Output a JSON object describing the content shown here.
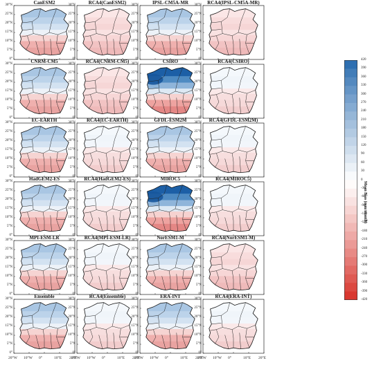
{
  "panels": [
    {
      "title": "CanESM2",
      "pattern": "strong"
    },
    {
      "title": "RCA4(CanESM2)",
      "pattern": "red"
    },
    {
      "title": "IPSL-CM5A-MR",
      "pattern": "strong"
    },
    {
      "title": "RCA4(IPSL-CM5A-MR)",
      "pattern": "red"
    },
    {
      "title": "CNRM-CM5",
      "pattern": "strong"
    },
    {
      "title": "RCA4(CNRM-CM5)",
      "pattern": "red"
    },
    {
      "title": "CSIRO",
      "pattern": "verystrong"
    },
    {
      "title": "RCA4(CSIRO)",
      "pattern": "light"
    },
    {
      "title": "EC-EARTH",
      "pattern": "strong"
    },
    {
      "title": "RCA4(EC-EARTH)",
      "pattern": "light"
    },
    {
      "title": "GFDL-ESM2M",
      "pattern": "strong"
    },
    {
      "title": "RCA4(GFDL-ESM2M)",
      "pattern": "light"
    },
    {
      "title": "HadGEM2-ES",
      "pattern": "strong"
    },
    {
      "title": "RCA4(HadGEM2-ES)",
      "pattern": "light"
    },
    {
      "title": "MIROC5",
      "pattern": "verystrong"
    },
    {
      "title": "RCA4(MIROC5)",
      "pattern": "light"
    },
    {
      "title": "MPI-ESM-LR",
      "pattern": "strong"
    },
    {
      "title": "RCA4(MPI-ESM-LR)",
      "pattern": "light"
    },
    {
      "title": "NorESM1-M",
      "pattern": "strong"
    },
    {
      "title": "RCA4(NorESM1-M)",
      "pattern": "red"
    },
    {
      "title": "Ensemble",
      "pattern": "strong"
    },
    {
      "title": "RCA4(Ensemble)",
      "pattern": "light"
    },
    {
      "title": "ERA-INT",
      "pattern": "strong"
    },
    {
      "title": "RCA4(ERA-INT)",
      "pattern": "light"
    }
  ],
  "lat_labels": [
    "30°N",
    "25°N",
    "20°N",
    "15°N",
    "10°N",
    "5°N",
    "0°"
  ],
  "lon_labels": [
    "20°W",
    "10°W",
    "0°",
    "10°E",
    "20°E"
  ],
  "colorbar": {
    "label": "Mean Bias (mm/month)",
    "ticks": [
      "420",
      "390",
      "360",
      "330",
      "300",
      "270",
      "240",
      "210",
      "180",
      "150",
      "120",
      "90",
      "60",
      "30",
      "0",
      "-30",
      "-60",
      "-90",
      "-120",
      "-150",
      "-180",
      "-210",
      "-240",
      "-270",
      "-300",
      "-330",
      "-360",
      "-390",
      "-420"
    ],
    "color_max": "#2166ac",
    "color_zero": "#ffffff",
    "color_min": "#d73027"
  }
}
